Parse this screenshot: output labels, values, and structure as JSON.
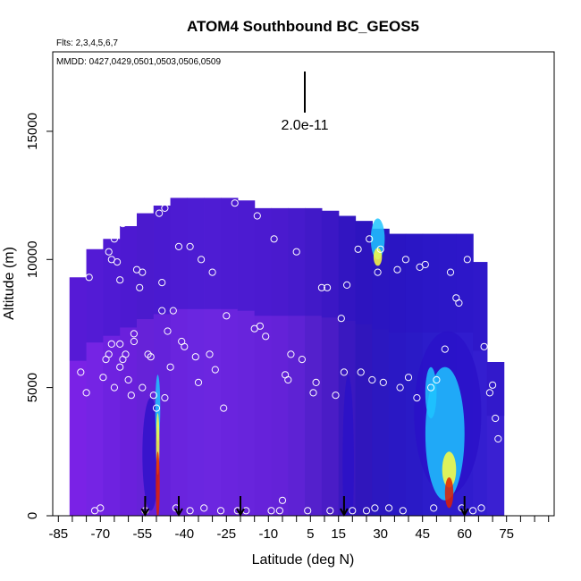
{
  "chart_data": {
    "type": "heatmap",
    "title": "ATOM4 Southbound BC_GEOS5",
    "flights_note": "Flts: 2,3,4,5,6,7",
    "dates_note": "MMDD: 0427,0429,0501,0503,0506,0509",
    "scale_label": "2.0e-11",
    "xlabel": "Latitude (deg N)",
    "ylabel": "Altitude (m)",
    "xlim": [
      -87,
      92
    ],
    "ylim": [
      0,
      18100
    ],
    "x_ticks": [
      -85,
      -70,
      -55,
      -40,
      -25,
      -10,
      5,
      15,
      30,
      45,
      60,
      75
    ],
    "x_minor_ticks": [
      -80,
      -75,
      -65,
      -60,
      -50,
      -45,
      -35,
      -30,
      -20,
      -15,
      -5,
      0,
      10,
      20,
      25,
      35,
      40,
      50,
      55,
      65,
      70,
      80,
      85,
      90
    ],
    "y_ticks": [
      0,
      5000,
      10000,
      15000
    ],
    "colors": {
      "background_field": "#6a1fe0",
      "low": "#2a10c8",
      "mid": "#1fc4ff",
      "high": "#ffff40",
      "peak": "#e02000"
    },
    "field_columns": [
      {
        "lat": -78,
        "top": 9300,
        "base": "#7a22e6"
      },
      {
        "lat": -72,
        "top": 10400,
        "base": "#7524e4"
      },
      {
        "lat": -66,
        "top": 10800,
        "base": "#6e22e0"
      },
      {
        "lat": -60,
        "top": 11300,
        "base": "#6a20dc"
      },
      {
        "lat": -54,
        "top": 11800,
        "base": "#6622d8"
      },
      {
        "lat": -48,
        "top": 12100,
        "base": "#6422da"
      },
      {
        "lat": -42,
        "top": 12400,
        "base": "#6a24de"
      },
      {
        "lat": -36,
        "top": 12400,
        "base": "#6a26e0"
      },
      {
        "lat": -30,
        "top": 12400,
        "base": "#6c26e0"
      },
      {
        "lat": -24,
        "top": 12400,
        "base": "#6a24de"
      },
      {
        "lat": -18,
        "top": 12300,
        "base": "#6824dc"
      },
      {
        "lat": -12,
        "top": 12000,
        "base": "#6622da"
      },
      {
        "lat": -6,
        "top": 12000,
        "base": "#6422d8"
      },
      {
        "lat": 0,
        "top": 12000,
        "base": "#5e22d4"
      },
      {
        "lat": 6,
        "top": 12000,
        "base": "#5420cc"
      },
      {
        "lat": 12,
        "top": 11900,
        "base": "#4a1cc6"
      },
      {
        "lat": 18,
        "top": 11700,
        "base": "#3a18c0"
      },
      {
        "lat": 24,
        "top": 11500,
        "base": "#3016bc"
      },
      {
        "lat": 30,
        "top": 11200,
        "base": "#2c18c0"
      },
      {
        "lat": 36,
        "top": 11000,
        "base": "#2a18c4"
      },
      {
        "lat": 42,
        "top": 11000,
        "base": "#2a1ac6"
      },
      {
        "lat": 48,
        "top": 11000,
        "base": "#2c1cca"
      },
      {
        "lat": 54,
        "top": 11000,
        "base": "#2e1ccc"
      },
      {
        "lat": 60,
        "top": 11000,
        "base": "#301cce"
      },
      {
        "lat": 66,
        "top": 9900,
        "base": "#341ed0"
      },
      {
        "lat": 71,
        "top": 6000,
        "base": "#3a20d2"
      }
    ],
    "enhancements": [
      {
        "lat": -49.5,
        "alt": 1200,
        "width_deg": 1.4,
        "height_m": 2600,
        "level": "peak"
      },
      {
        "lat": -49.5,
        "alt": 2800,
        "width_deg": 1.2,
        "height_m": 2400,
        "level": "high"
      },
      {
        "lat": -49.5,
        "alt": 4200,
        "width_deg": 1.8,
        "height_m": 2600,
        "level": "mid"
      },
      {
        "lat": -52,
        "alt": 2400,
        "width_deg": 6,
        "height_m": 4400,
        "level": "low"
      },
      {
        "lat": 18.5,
        "alt": 2000,
        "width_deg": 4,
        "height_m": 7000,
        "level": "low"
      },
      {
        "lat": 29,
        "alt": 10100,
        "width_deg": 3,
        "height_m": 700,
        "level": "high"
      },
      {
        "lat": 29,
        "alt": 10800,
        "width_deg": 5,
        "height_m": 1600,
        "level": "mid"
      },
      {
        "lat": 54.5,
        "alt": 900,
        "width_deg": 3,
        "height_m": 1200,
        "level": "peak"
      },
      {
        "lat": 54.5,
        "alt": 1800,
        "width_deg": 5,
        "height_m": 1400,
        "level": "high"
      },
      {
        "lat": 53,
        "alt": 3200,
        "width_deg": 14,
        "height_m": 5200,
        "level": "mid"
      },
      {
        "lat": 48,
        "alt": 4800,
        "width_deg": 4,
        "height_m": 2000,
        "level": "mid"
      },
      {
        "lat": 54,
        "alt": 4000,
        "width_deg": 24,
        "height_m": 6400,
        "level": "low"
      }
    ],
    "flight_points": [
      [
        -86,
        6300
      ],
      [
        -80,
        9600
      ],
      [
        -79,
        9600
      ],
      [
        -77,
        5600
      ],
      [
        -75,
        4800
      ],
      [
        -74,
        9300
      ],
      [
        -72,
        200
      ],
      [
        -70,
        300
      ],
      [
        -69,
        5400
      ],
      [
        -68,
        6100
      ],
      [
        -67,
        6300
      ],
      [
        -67,
        10300
      ],
      [
        -66,
        10000
      ],
      [
        -66,
        6700
      ],
      [
        -65,
        5000
      ],
      [
        -65,
        10800
      ],
      [
        -64,
        9900
      ],
      [
        -63,
        5800
      ],
      [
        -63,
        6700
      ],
      [
        -63,
        9200
      ],
      [
        -62,
        11400
      ],
      [
        -62,
        6100
      ],
      [
        -61,
        6300
      ],
      [
        -60,
        5300
      ],
      [
        -59,
        4700
      ],
      [
        -58,
        6800
      ],
      [
        -58,
        7100
      ],
      [
        -57,
        9600
      ],
      [
        -56,
        8900
      ],
      [
        -55,
        5000
      ],
      [
        -55,
        9500
      ],
      [
        -54,
        200
      ],
      [
        -53,
        12000
      ],
      [
        -53,
        6300
      ],
      [
        -52,
        6200
      ],
      [
        -51,
        4700
      ],
      [
        -50,
        4200
      ],
      [
        -49,
        11800
      ],
      [
        -48,
        8000
      ],
      [
        -48,
        9100
      ],
      [
        -47,
        12000
      ],
      [
        -47,
        4600
      ],
      [
        -46,
        7200
      ],
      [
        -45,
        5800
      ],
      [
        -44,
        8000
      ],
      [
        -43,
        300
      ],
      [
        -42,
        10500
      ],
      [
        -41,
        6800
      ],
      [
        -40,
        6600
      ],
      [
        -38,
        200
      ],
      [
        -38,
        10500
      ],
      [
        -36,
        6200
      ],
      [
        -35,
        5200
      ],
      [
        -34,
        10000
      ],
      [
        -33,
        300
      ],
      [
        -31,
        6300
      ],
      [
        -30,
        9500
      ],
      [
        -29,
        5700
      ],
      [
        -27,
        200
      ],
      [
        -26,
        4200
      ],
      [
        -25,
        7800
      ],
      [
        -22,
        12200
      ],
      [
        -21,
        200
      ],
      [
        -18,
        200
      ],
      [
        -15,
        7300
      ],
      [
        -14,
        11700
      ],
      [
        -13,
        7400
      ],
      [
        -11,
        7000
      ],
      [
        -9,
        200
      ],
      [
        -8,
        10800
      ],
      [
        -6,
        200
      ],
      [
        -5,
        600
      ],
      [
        -4,
        5500
      ],
      [
        -3,
        5300
      ],
      [
        -2,
        6300
      ],
      [
        0,
        10300
      ],
      [
        2,
        6100
      ],
      [
        4,
        200
      ],
      [
        6,
        4800
      ],
      [
        7,
        5200
      ],
      [
        9,
        8900
      ],
      [
        11,
        8900
      ],
      [
        12,
        200
      ],
      [
        14,
        4700
      ],
      [
        16,
        7700
      ],
      [
        17,
        5600
      ],
      [
        18,
        9000
      ],
      [
        20,
        200
      ],
      [
        22,
        10400
      ],
      [
        23,
        5600
      ],
      [
        25,
        200
      ],
      [
        26,
        10800
      ],
      [
        27,
        5300
      ],
      [
        28,
        300
      ],
      [
        29,
        9500
      ],
      [
        30,
        10400
      ],
      [
        31,
        5200
      ],
      [
        33,
        300
      ],
      [
        36,
        9600
      ],
      [
        37,
        5000
      ],
      [
        38,
        200
      ],
      [
        39,
        10000
      ],
      [
        40,
        5400
      ],
      [
        43,
        4600
      ],
      [
        44,
        9700
      ],
      [
        46,
        9800
      ],
      [
        48,
        5000
      ],
      [
        49,
        300
      ],
      [
        50,
        5300
      ],
      [
        53,
        6500
      ],
      [
        55,
        9500
      ],
      [
        57,
        8500
      ],
      [
        58,
        8300
      ],
      [
        59,
        300
      ],
      [
        61,
        10000
      ],
      [
        63,
        200
      ],
      [
        66,
        300
      ],
      [
        67,
        6600
      ],
      [
        69,
        4800
      ],
      [
        70,
        5100
      ],
      [
        71,
        3800
      ],
      [
        72,
        3000
      ]
    ],
    "arrows_lat": [
      -54,
      -42,
      -20,
      17,
      60
    ]
  }
}
